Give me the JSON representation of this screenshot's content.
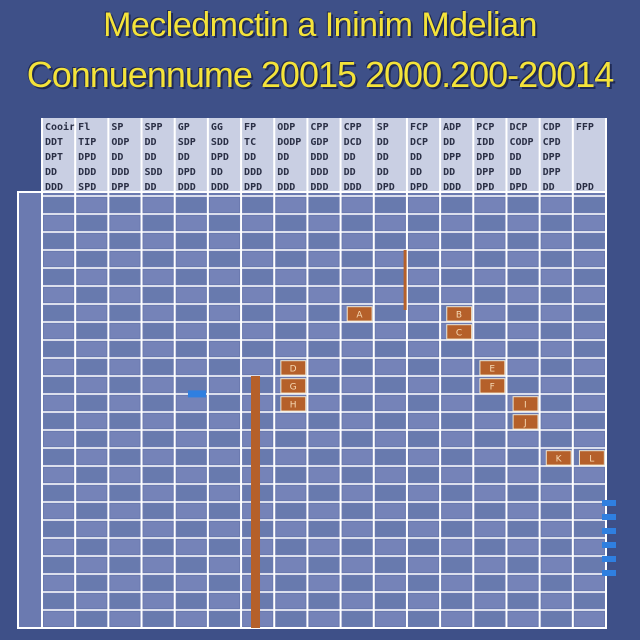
{
  "title": "Mecledmctin a Ininim  Mdelian",
  "subtitle": "Connuennume 20015 2000.200-20014",
  "colors": {
    "background": "#3e5088",
    "title": "#f4e33a",
    "grid_line": "#ffffff",
    "cell": "#6b7ab0",
    "header_band": "#c9cfe3",
    "marker": "#b5602a",
    "accent_blue": "#2f7fe0"
  },
  "chart_data": {
    "type": "heatmap",
    "title": "Mecledmctin a Ininim  Mdelian",
    "subtitle": "Connuennume 20015 2000.200-20014",
    "header_rows": [
      [
        "Cooir",
        "Fl",
        "SP",
        "SPP",
        "GP",
        "GG",
        "FP",
        "ODP",
        "CPP",
        "CPP",
        "SP",
        "FCP",
        "ADP",
        "PCP",
        "DCP",
        "CDP",
        "FFP"
      ],
      [
        "DDT",
        "TIP",
        "ODP",
        "DD",
        "SDP",
        "SDD",
        "TC",
        "DODP",
        "GDP",
        "DCD",
        "DD",
        "DCP",
        "DD",
        "IDD",
        "CODP",
        "CPD"
      ],
      [
        "DPT",
        "DPD",
        "DD",
        "DD",
        "DD",
        "DPD",
        "DD",
        "DD",
        "DDD",
        "DD",
        "DD",
        "DD",
        "DPP",
        "DPD",
        "DD",
        "DPP"
      ],
      [
        "DD",
        "DDD",
        "DDD",
        "SDD",
        "DPD",
        "DD",
        "DDD",
        "DD",
        "DDD",
        "DD",
        "DD",
        "DD",
        "DD",
        "DPP",
        "DD",
        "DPP"
      ],
      [
        "DDD",
        "SPD",
        "DPP",
        "DD",
        "DDD",
        "DDD",
        "DPD",
        "DDD",
        "DDD",
        "DDD",
        "DPD",
        "DPD",
        "DDD",
        "DPD",
        "DPD",
        "DD",
        "DPD"
      ]
    ],
    "grid": {
      "columns": 17,
      "rows": 24
    },
    "markers": [
      {
        "column": 9,
        "row": 6,
        "label": "A"
      },
      {
        "column": 12,
        "row": 6,
        "label": "B"
      },
      {
        "column": 12,
        "row": 7,
        "label": "C"
      },
      {
        "column": 7,
        "row": 9,
        "label": "D"
      },
      {
        "column": 13,
        "row": 9,
        "label": "E"
      },
      {
        "column": 13,
        "row": 10,
        "label": "F"
      },
      {
        "column": 7,
        "row": 10,
        "label": "G"
      },
      {
        "column": 7,
        "row": 11,
        "label": "H"
      },
      {
        "column": 14,
        "row": 11,
        "label": "I"
      },
      {
        "column": 14,
        "row": 12,
        "label": "J"
      },
      {
        "column": 15,
        "row": 14,
        "label": "K"
      },
      {
        "column": 16,
        "row": 14,
        "label": "L"
      }
    ],
    "legend": "none",
    "grid_on": true
  }
}
